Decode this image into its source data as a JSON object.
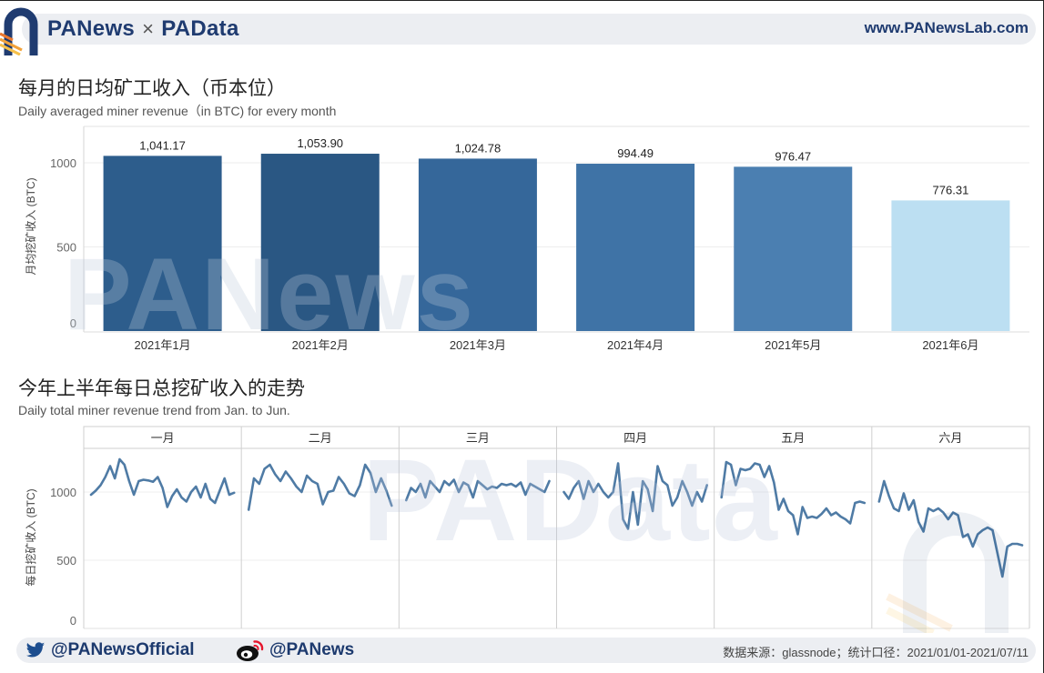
{
  "header": {
    "brand_left": "PANews",
    "separator": "×",
    "brand_right": "PAData",
    "website": "www.PANewsLab.com"
  },
  "watermarks": {
    "chart1": "PANews",
    "chart2": "PAData"
  },
  "footer": {
    "twitter_handle": "@PANewsOfficial",
    "weibo_handle": "@PANews",
    "source": "数据来源：glassnode；统计口径：2021/01/01-2021/07/11"
  },
  "icons": {
    "logo": "panews-logo-icon",
    "twitter": "twitter-icon",
    "weibo": "weibo-icon",
    "watermark_logo": "panews-watermark-logo-icon"
  },
  "colors": {
    "brand_navy": "#1f3b70",
    "accent_orange": "#f2a23a",
    "band_gray": "#eceef2"
  },
  "chart_data": [
    {
      "type": "bar",
      "title": "每月的日均矿工收入（币本位）",
      "subtitle": "Daily averaged miner revenue（in BTC) for every month",
      "xlabel": "",
      "ylabel": "月均挖矿收入 (BTC)",
      "categories": [
        "2021年1月",
        "2021年2月",
        "2021年3月",
        "2021年4月",
        "2021年5月",
        "2021年6月"
      ],
      "values": [
        1041.17,
        1053.9,
        1024.78,
        994.49,
        976.47,
        776.31
      ],
      "value_labels": [
        "1,041.17",
        "1,053.90",
        "1,024.78",
        "994.49",
        "976.47",
        "776.31"
      ],
      "yticks": [
        0,
        500,
        1000
      ],
      "ylim": [
        0,
        1200
      ],
      "grid": true,
      "bar_colors": [
        "#2d5d8c",
        "#2a5783",
        "#35679a",
        "#3f73a6",
        "#4b7fb1",
        "#bcdff2"
      ]
    },
    {
      "type": "line",
      "title": "今年上半年每日总挖矿收入的走势",
      "subtitle": "Daily total miner revenue trend from Jan. to Jun.",
      "ylabel": "每日挖矿收入 (BTC)",
      "yticks": [
        0,
        500,
        1000
      ],
      "ylim": [
        0,
        1300
      ],
      "grid": true,
      "line_color": "#4f7ba5",
      "facets": [
        {
          "label": "一月",
          "values": [
            980,
            1010,
            1050,
            1110,
            1190,
            1100,
            1240,
            1200,
            1080,
            980,
            1080,
            1090,
            1085,
            1075,
            1110,
            1030,
            890,
            970,
            1020,
            960,
            930,
            1000,
            1040,
            960,
            1060,
            950,
            920,
            1010,
            1100,
            980,
            995
          ]
        },
        {
          "label": "二月",
          "values": [
            870,
            1100,
            1060,
            1170,
            1200,
            1130,
            1080,
            1150,
            1100,
            1040,
            1000,
            1120,
            1080,
            1060,
            910,
            1000,
            1010,
            1110,
            1060,
            990,
            970,
            1050,
            1200,
            1140,
            1000,
            1100,
            1010,
            900
          ]
        },
        {
          "label": "三月",
          "values": [
            940,
            1030,
            1000,
            1060,
            960,
            1080,
            1040,
            1000,
            1080,
            1050,
            1090,
            1000,
            1070,
            1050,
            960,
            1080,
            1050,
            1020,
            1040,
            1030,
            1060,
            1050,
            1060,
            1040,
            1070,
            980,
            1060,
            1040,
            1020,
            1000,
            1080
          ]
        },
        {
          "label": "四月",
          "values": [
            1000,
            950,
            1030,
            1080,
            950,
            1080,
            1000,
            1060,
            1000,
            960,
            1000,
            1210,
            800,
            730,
            1000,
            760,
            1080,
            1020,
            860,
            1190,
            1080,
            1050,
            900,
            960,
            1080,
            1000,
            900,
            1000,
            930,
            1050
          ]
        },
        {
          "label": "五月",
          "values": [
            960,
            1220,
            1200,
            1050,
            1170,
            1160,
            1170,
            1210,
            1200,
            1110,
            1190,
            1070,
            870,
            950,
            860,
            830,
            690,
            890,
            810,
            820,
            810,
            840,
            880,
            830,
            850,
            820,
            800,
            770,
            920,
            930,
            920
          ]
        },
        {
          "label": "六月",
          "values": [
            930,
            1080,
            970,
            880,
            860,
            990,
            870,
            940,
            780,
            710,
            880,
            860,
            880,
            850,
            800,
            850,
            830,
            670,
            690,
            600,
            690,
            720,
            740,
            720,
            550,
            380,
            600,
            620,
            620,
            610
          ]
        }
      ]
    }
  ]
}
